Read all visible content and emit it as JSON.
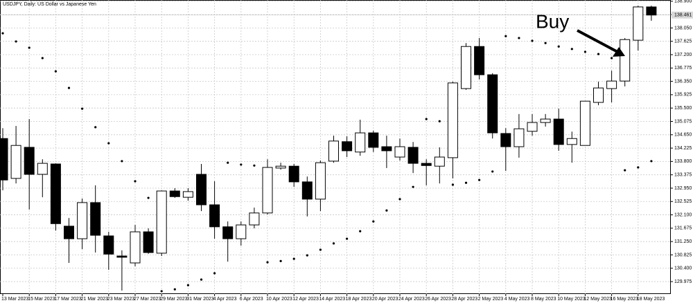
{
  "chart_data": {
    "type": "candlestick",
    "title": "USDJPY, Daily: US Dollar vs Japanese Yen",
    "annotation": "Buy",
    "categories": [
      "13 Mar 2023",
      null,
      "15 Mar 2023",
      null,
      "17 Mar 2023",
      null,
      "21 Mar 2023",
      null,
      "23 Mar 2023",
      null,
      "27 Mar 2023",
      null,
      "29 Mar 2023",
      null,
      "31 Mar 2023",
      null,
      "4 Apr 2023",
      null,
      "6 Apr 2023",
      null,
      "10 Apr 2023",
      null,
      "12 Apr 2023",
      null,
      "14 Apr 2023",
      null,
      "18 Apr 2023",
      null,
      "20 Apr 2023",
      null,
      "24 Apr 2023",
      null,
      "26 Apr 2023",
      null,
      "28 Apr 2023",
      null,
      "2 May 2023",
      null,
      "4 May 2023",
      null,
      "8 May 2023",
      null,
      "10 May 2023",
      null,
      "12 May 2023",
      null,
      "16 May 2023",
      null,
      "18 May 2023",
      null
    ],
    "open": [
      134.53,
      133.26,
      134.25,
      133.39,
      133.72,
      131.74,
      131.34,
      132.49,
      131.43,
      130.79,
      130.57,
      131.56,
      130.88,
      132.86,
      132.66,
      133.39,
      132.42,
      131.72,
      131.34,
      131.78,
      132.16,
      133.59,
      133.65,
      133.15,
      132.6,
      133.81,
      134.43,
      134.1,
      134.71,
      134.27,
      133.94,
      134.25,
      133.74,
      133.65,
      133.92,
      136.12,
      137.46,
      136.56,
      134.69,
      134.27,
      134.76,
      135.04,
      135.15,
      134.34,
      134.31,
      135.68,
      136.12,
      136.36,
      137.66,
      138.72
    ],
    "high": [
      134.86,
      134.93,
      135.15,
      133.87,
      133.74,
      132.0,
      132.62,
      133.04,
      131.56,
      130.97,
      131.78,
      131.67,
      132.88,
      132.95,
      132.95,
      133.72,
      133.17,
      131.89,
      131.89,
      132.33,
      133.87,
      133.76,
      133.72,
      133.32,
      133.83,
      134.62,
      134.6,
      135.13,
      134.78,
      134.62,
      134.53,
      134.42,
      133.87,
      134.25,
      136.34,
      137.57,
      137.73,
      136.61,
      134.86,
      135.31,
      135.31,
      135.31,
      135.48,
      134.75,
      135.72,
      136.34,
      136.69,
      137.73,
      138.76,
      138.76
    ],
    "low": [
      132.88,
      133.1,
      132.27,
      132.66,
      131.6,
      130.57,
      131.01,
      130.9,
      130.35,
      129.69,
      130.46,
      130.86,
      130.79,
      132.64,
      132.55,
      132.22,
      131.34,
      130.61,
      131.12,
      131.67,
      132.11,
      133.54,
      132.99,
      132.05,
      132.22,
      133.76,
      133.94,
      133.98,
      134.1,
      133.59,
      133.83,
      133.43,
      133.04,
      133.1,
      133.26,
      136.08,
      136.41,
      134.53,
      133.5,
      133.92,
      134.62,
      134.91,
      134.14,
      133.76,
      134.31,
      135.59,
      135.68,
      136.19,
      137.33,
      138.28
    ],
    "close": [
      133.21,
      134.31,
      133.39,
      133.74,
      131.82,
      131.34,
      132.49,
      131.45,
      130.85,
      130.75,
      131.56,
      130.9,
      132.86,
      132.68,
      132.84,
      132.42,
      131.72,
      131.34,
      131.78,
      132.16,
      133.61,
      133.65,
      133.15,
      132.6,
      133.76,
      134.45,
      134.14,
      134.71,
      134.25,
      134.14,
      134.27,
      133.74,
      133.67,
      133.94,
      136.3,
      137.46,
      136.56,
      134.71,
      134.27,
      134.84,
      135.04,
      135.15,
      134.34,
      134.53,
      135.72,
      136.14,
      136.36,
      137.68,
      138.72,
      138.461
    ],
    "sar": [
      137.88,
      137.62,
      137.42,
      137.09,
      136.67,
      136.14,
      135.48,
      134.89,
      134.38,
      133.81,
      133.17,
      132.64,
      129.67,
      129.73,
      129.86,
      130.04,
      130.24,
      133.76,
      133.7,
      133.67,
      130.59,
      130.63,
      130.7,
      130.81,
      130.99,
      131.19,
      131.34,
      131.58,
      131.89,
      132.24,
      132.6,
      132.99,
      135.15,
      135.08,
      133.06,
      133.12,
      133.21,
      133.48,
      137.79,
      137.73,
      137.64,
      137.57,
      137.46,
      137.38,
      137.29,
      137.22,
      137.09,
      133.52,
      133.61,
      133.81
    ],
    "last_price": 138.461,
    "up_color": "#ffffff",
    "down_color": "#000000",
    "sar_color": "#000000",
    "ylim": [
      129.58,
      138.94
    ],
    "yticks": [
      129.975,
      {
        "value": 130.4,
        "label": "130.400"
      },
      130.825,
      {
        "value": 131.25,
        "label": "131.250"
      },
      131.675,
      {
        "value": 132.1,
        "label": "132.100"
      },
      132.525,
      {
        "value": 132.95,
        "label": "132.950"
      },
      133.375,
      {
        "value": 133.8,
        "label": "133.800"
      },
      134.225,
      {
        "value": 134.65,
        "label": "134.650"
      },
      135.075,
      {
        "value": 135.5,
        "label": "135.500"
      },
      135.925,
      {
        "value": 136.35,
        "label": "136.350"
      },
      136.775,
      {
        "value": 137.2,
        "label": "137.200"
      },
      137.625,
      {
        "value": 138.05,
        "label": "138.050"
      },
      138.475,
      {
        "value": 138.9,
        "label": "138.900"
      }
    ],
    "grid": true
  }
}
